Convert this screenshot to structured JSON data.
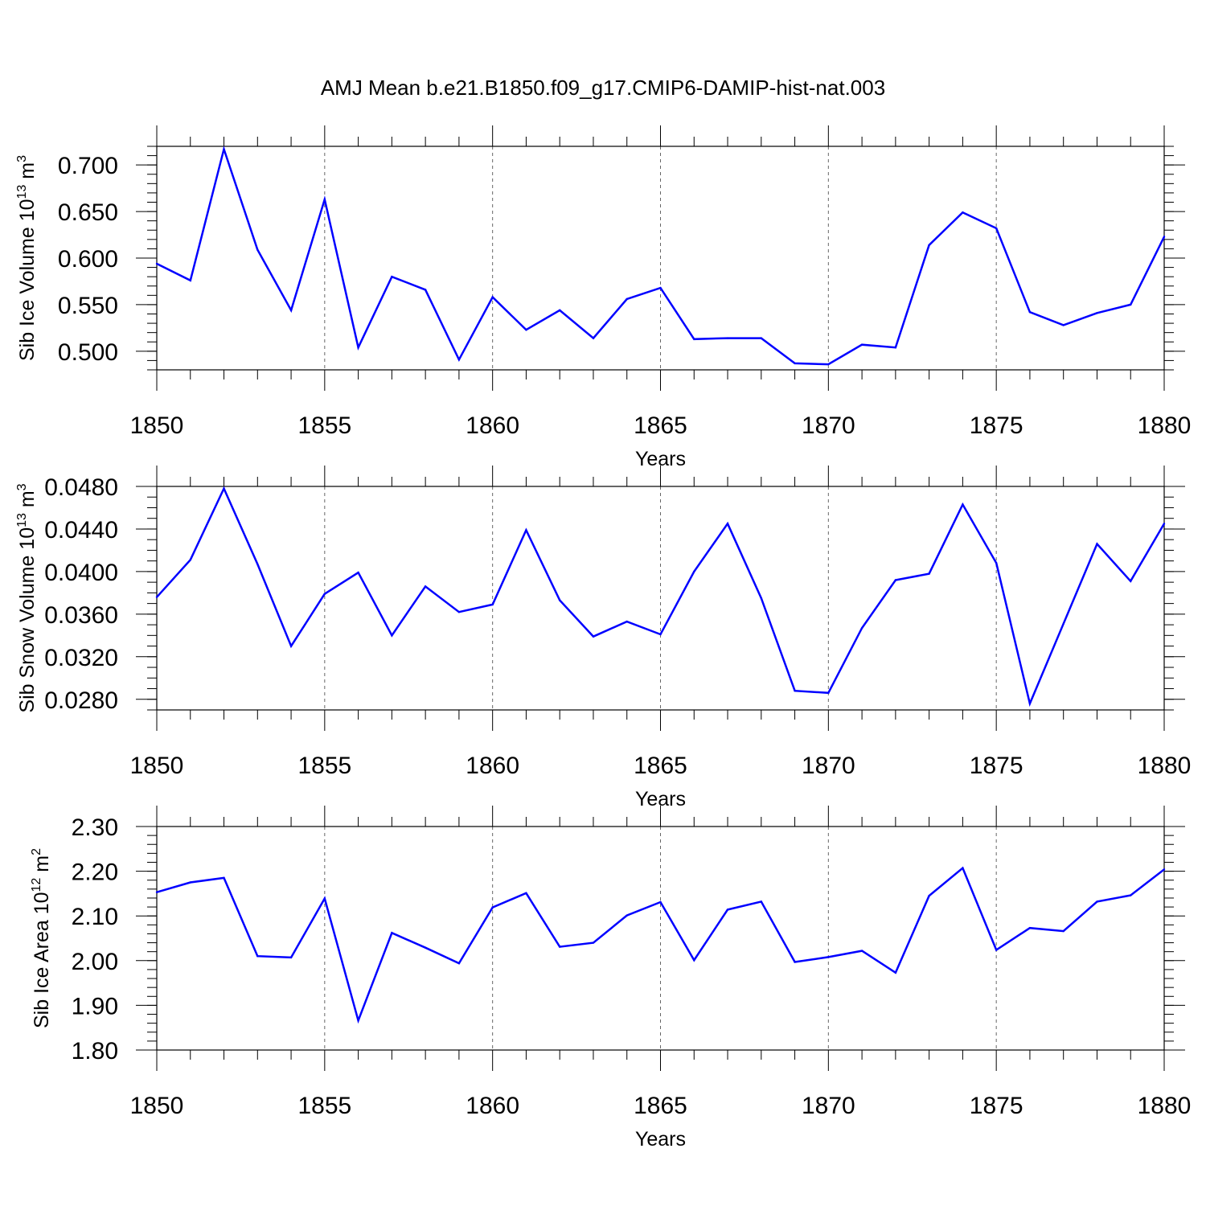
{
  "title": "AMJ Mean b.e21.B1850.f09_g17.CMIP6-DAMIP-hist-nat.003",
  "line_color": "#0000ff",
  "chart_data": [
    {
      "type": "line",
      "ylabel_main": "Sib Ice Volume 10",
      "ylabel_sup1": "13",
      "ylabel_unit": " m",
      "ylabel_sup2": "3",
      "xlabel": "Years",
      "xlim": [
        1850,
        1880
      ],
      "ylim": [
        0.48,
        0.72
      ],
      "x_ticks": [
        1850,
        1855,
        1860,
        1865,
        1870,
        1875,
        1880
      ],
      "x_tick_labels": [
        "1850",
        "1855",
        "1860",
        "1865",
        "1870",
        "1875",
        "1880"
      ],
      "y_ticks": [
        0.5,
        0.55,
        0.6,
        0.65,
        0.7
      ],
      "y_tick_labels": [
        "0.500",
        "0.550",
        "0.600",
        "0.650",
        "0.700"
      ],
      "y_minor_step": 0.01,
      "grid": "dashed vertical at major x ticks",
      "x": [
        1850,
        1851,
        1852,
        1853,
        1854,
        1855,
        1856,
        1857,
        1858,
        1859,
        1860,
        1861,
        1862,
        1863,
        1864,
        1865,
        1866,
        1867,
        1868,
        1869,
        1870,
        1871,
        1872,
        1873,
        1874,
        1875,
        1876,
        1877,
        1878,
        1879,
        1880
      ],
      "values": [
        0.594,
        0.576,
        0.717,
        0.609,
        0.544,
        0.663,
        0.504,
        0.58,
        0.566,
        0.491,
        0.558,
        0.523,
        0.544,
        0.514,
        0.556,
        0.568,
        0.513,
        0.514,
        0.514,
        0.487,
        0.486,
        0.507,
        0.504,
        0.614,
        0.649,
        0.632,
        0.542,
        0.528,
        0.541,
        0.55,
        0.623
      ]
    },
    {
      "type": "line",
      "ylabel_main": "Sib Snow Volume 10",
      "ylabel_sup1": "13",
      "ylabel_unit": " m",
      "ylabel_sup2": "3",
      "xlabel": "Years",
      "xlim": [
        1850,
        1880
      ],
      "ylim": [
        0.027,
        0.048
      ],
      "x_ticks": [
        1850,
        1855,
        1860,
        1865,
        1870,
        1875,
        1880
      ],
      "x_tick_labels": [
        "1850",
        "1855",
        "1860",
        "1865",
        "1870",
        "1875",
        "1880"
      ],
      "y_ticks": [
        0.028,
        0.032,
        0.036,
        0.04,
        0.044,
        0.048
      ],
      "y_tick_labels": [
        "0.0280",
        "0.0320",
        "0.0360",
        "0.0400",
        "0.0440",
        "0.0480"
      ],
      "y_minor_step": 0.001,
      "grid": "dashed vertical at major x ticks",
      "x": [
        1850,
        1851,
        1852,
        1853,
        1854,
        1855,
        1856,
        1857,
        1858,
        1859,
        1860,
        1861,
        1862,
        1863,
        1864,
        1865,
        1866,
        1867,
        1868,
        1869,
        1870,
        1871,
        1872,
        1873,
        1874,
        1875,
        1876,
        1877,
        1878,
        1879,
        1880
      ],
      "values": [
        0.0376,
        0.0411,
        0.0478,
        0.0407,
        0.033,
        0.0379,
        0.0399,
        0.034,
        0.0386,
        0.0362,
        0.0369,
        0.0439,
        0.0373,
        0.0339,
        0.0353,
        0.0341,
        0.04,
        0.0445,
        0.0375,
        0.0288,
        0.0286,
        0.0347,
        0.0392,
        0.0398,
        0.0463,
        0.0408,
        0.0276,
        0.0351,
        0.0426,
        0.0391,
        0.0445
      ]
    },
    {
      "type": "line",
      "ylabel_main": "Sib Ice Area 10",
      "ylabel_sup1": "12",
      "ylabel_unit": " m",
      "ylabel_sup2": "2",
      "xlabel": "Years",
      "xlim": [
        1850,
        1880
      ],
      "ylim": [
        1.8,
        2.3
      ],
      "x_ticks": [
        1850,
        1855,
        1860,
        1865,
        1870,
        1875,
        1880
      ],
      "x_tick_labels": [
        "1850",
        "1855",
        "1860",
        "1865",
        "1870",
        "1875",
        "1880"
      ],
      "y_ticks": [
        1.8,
        1.9,
        2.0,
        2.1,
        2.2,
        2.3
      ],
      "y_tick_labels": [
        "1.80",
        "1.90",
        "2.00",
        "2.10",
        "2.20",
        "2.30"
      ],
      "y_minor_step": 0.02,
      "grid": "dashed vertical at major x ticks",
      "x": [
        1850,
        1851,
        1852,
        1853,
        1854,
        1855,
        1856,
        1857,
        1858,
        1859,
        1860,
        1861,
        1862,
        1863,
        1864,
        1865,
        1866,
        1867,
        1868,
        1869,
        1870,
        1871,
        1872,
        1873,
        1874,
        1875,
        1876,
        1877,
        1878,
        1879,
        1880
      ],
      "values": [
        2.153,
        2.175,
        2.185,
        2.01,
        2.007,
        2.139,
        1.866,
        2.062,
        2.029,
        1.994,
        2.119,
        2.151,
        2.031,
        2.04,
        2.101,
        2.131,
        2.001,
        2.114,
        2.132,
        1.997,
        2.008,
        2.022,
        1.973,
        2.145,
        2.207,
        2.024,
        2.073,
        2.066,
        2.132,
        2.146,
        2.204
      ]
    }
  ]
}
